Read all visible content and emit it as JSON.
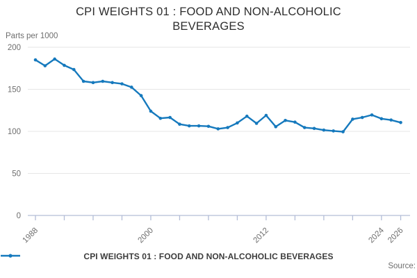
{
  "title": "CPI WEIGHTS 01 : FOOD AND NON-ALCOHOLIC BEVERAGES",
  "unit_label": "Parts per 1000",
  "legend_label": "CPI WEIGHTS 01 : FOOD AND NON-ALCOHOLIC BEVERAGES",
  "source_label": "Source:",
  "colors": {
    "line": "#1579bd",
    "axis": "#b3bdd7",
    "grid": "#e6e6e6",
    "tick_text": "#6e6e6e",
    "title_text": "#2d2d2d",
    "legend_text": "#3c3c3c"
  },
  "chart_data": {
    "type": "line",
    "title": "CPI WEIGHTS 01 : FOOD AND NON-ALCOHOLIC BEVERAGES",
    "xlabel": "",
    "ylabel": "Parts per 1000",
    "ylim": [
      0,
      200
    ],
    "yticks": [
      0,
      50,
      100,
      150,
      200
    ],
    "xtick_marks": [
      1988,
      1991,
      1994,
      1997,
      2000,
      2003,
      2006,
      2009,
      2012,
      2015,
      2018,
      2021,
      2024,
      2026
    ],
    "xtick_labeled": [
      1988,
      2000,
      2012,
      2024,
      2026
    ],
    "grid": "horizontal",
    "legend_position": "bottom",
    "series_name": "CPI WEIGHTS 01 : FOOD AND NON-ALCOHOLIC BEVERAGES",
    "x": [
      1988,
      1989,
      1990,
      1991,
      1992,
      1993,
      1994,
      1995,
      1996,
      1997,
      1998,
      1999,
      2000,
      2001,
      2002,
      2003,
      2004,
      2005,
      2006,
      2007,
      2008,
      2009,
      2010,
      2011,
      2012,
      2013,
      2014,
      2015,
      2016,
      2017,
      2018,
      2019,
      2020,
      2021,
      2022,
      2023,
      2024,
      2025,
      2026
    ],
    "values": [
      185,
      178,
      186,
      178.5,
      173.5,
      159.5,
      158,
      159.5,
      158,
      156.5,
      152.5,
      142.5,
      124,
      115.5,
      116.5,
      108.5,
      106.5,
      106.5,
      106,
      103,
      104.5,
      110,
      118,
      109.5,
      119,
      105.5,
      113,
      111,
      104.5,
      103.5,
      101.5,
      100.5,
      99.5,
      114.5,
      116.5,
      119.5,
      115,
      113.5,
      110.5
    ]
  }
}
